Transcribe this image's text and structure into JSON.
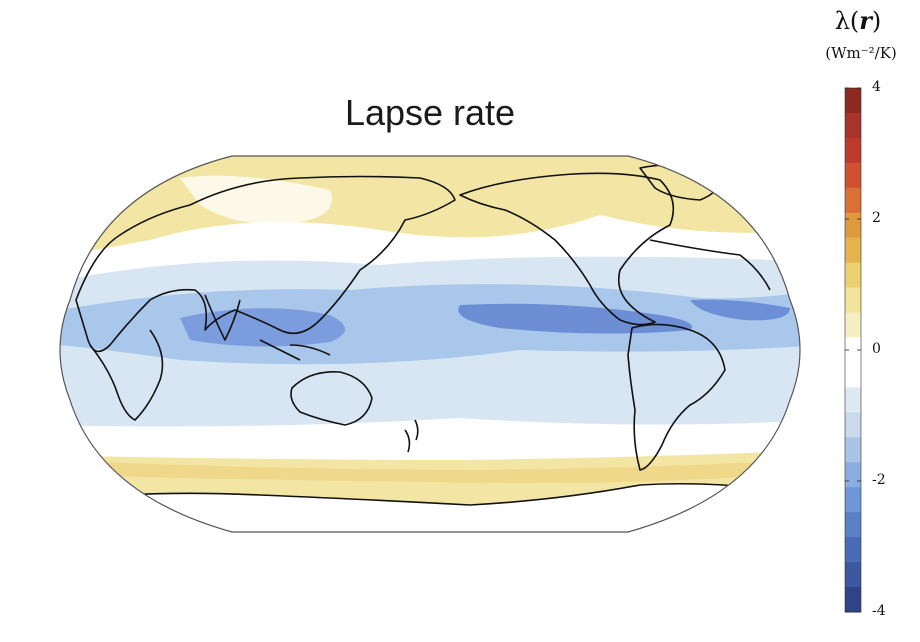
{
  "title": "Lapse rate",
  "colorbar": {
    "units": "(Wm⁻²/K)",
    "range": [
      -4,
      4
    ],
    "ticks": [
      "4",
      "2",
      "0",
      "-2",
      "-4"
    ],
    "tick_values": [
      4,
      2,
      0,
      -2,
      -4
    ],
    "colors_top_to_bottom": [
      "#8c2a22",
      "#a7332b",
      "#bd3b2e",
      "#d1502f",
      "#d97037",
      "#df9a3f",
      "#e4b451",
      "#ecd172",
      "#f2e49a",
      "#f7efc4",
      "#ffffff",
      "#ffffff",
      "#dfe9f3",
      "#c8daec",
      "#a9c4e6",
      "#8aaee0",
      "#6f96d6",
      "#5a80c8",
      "#4a6cb6",
      "#3c58a0",
      "#2e4486"
    ]
  },
  "palette": {
    "land_outline": "#111111",
    "ocean_neutral": "#ffffff",
    "warm_band": "#f3e6a4",
    "cool_light": "#d7e6f2",
    "cool_mid": "#a9c7ea",
    "cool_strong": "#6d8fd8"
  }
}
